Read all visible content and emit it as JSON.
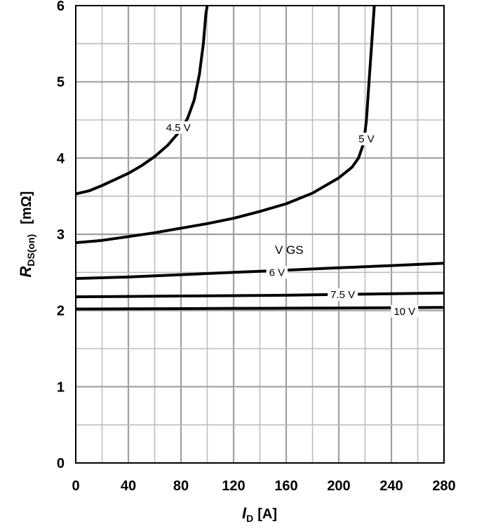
{
  "chart_data": {
    "type": "line",
    "xlabel": {
      "symbol": "I",
      "subscript": "D",
      "unit": "[A]"
    },
    "ylabel": {
      "symbol": "R",
      "subscript": "DS(on)",
      "unit": "[mΩ]"
    },
    "xlim": [
      0,
      280
    ],
    "ylim": [
      0,
      6
    ],
    "x_ticks": [
      "0",
      "40",
      "80",
      "120",
      "160",
      "200",
      "240",
      "280"
    ],
    "y_ticks": [
      "0",
      "1",
      "2",
      "3",
      "4",
      "5",
      "6"
    ],
    "grid": true,
    "group_label": "V GS",
    "series": [
      {
        "name": "4.5 V",
        "label_x": 78,
        "label_y": 4.4,
        "points": [
          [
            0,
            3.53
          ],
          [
            10,
            3.57
          ],
          [
            20,
            3.64
          ],
          [
            30,
            3.72
          ],
          [
            40,
            3.8
          ],
          [
            50,
            3.9
          ],
          [
            60,
            4.02
          ],
          [
            70,
            4.17
          ],
          [
            80,
            4.37
          ],
          [
            85,
            4.52
          ],
          [
            90,
            4.76
          ],
          [
            94,
            5.1
          ],
          [
            97,
            5.5
          ],
          [
            99,
            5.9
          ],
          [
            100,
            6.0
          ]
        ]
      },
      {
        "name": "5 V",
        "label_x": 221,
        "label_y": 4.25,
        "points": [
          [
            0,
            2.89
          ],
          [
            20,
            2.92
          ],
          [
            40,
            2.97
          ],
          [
            60,
            3.02
          ],
          [
            80,
            3.08
          ],
          [
            100,
            3.14
          ],
          [
            120,
            3.21
          ],
          [
            140,
            3.3
          ],
          [
            160,
            3.4
          ],
          [
            180,
            3.54
          ],
          [
            200,
            3.74
          ],
          [
            210,
            3.88
          ],
          [
            215,
            4.0
          ],
          [
            219,
            4.2
          ],
          [
            221,
            4.5
          ],
          [
            223,
            5.0
          ],
          [
            225,
            5.5
          ],
          [
            227,
            6.0
          ]
        ]
      },
      {
        "name": "6 V",
        "label_x": 153,
        "label_y": 2.5,
        "points": [
          [
            0,
            2.42
          ],
          [
            40,
            2.44
          ],
          [
            80,
            2.47
          ],
          [
            120,
            2.5
          ],
          [
            160,
            2.53
          ],
          [
            200,
            2.56
          ],
          [
            240,
            2.59
          ],
          [
            280,
            2.62
          ]
        ]
      },
      {
        "name": "7.5 V",
        "label_x": 203,
        "label_y": 2.21,
        "points": [
          [
            0,
            2.18
          ],
          [
            40,
            2.185
          ],
          [
            80,
            2.19
          ],
          [
            120,
            2.195
          ],
          [
            160,
            2.2
          ],
          [
            200,
            2.21
          ],
          [
            240,
            2.22
          ],
          [
            280,
            2.23
          ]
        ]
      },
      {
        "name": "10 V",
        "label_x": 250,
        "label_y": 1.99,
        "points": [
          [
            0,
            2.02
          ],
          [
            40,
            2.022
          ],
          [
            80,
            2.025
          ],
          [
            120,
            2.028
          ],
          [
            160,
            2.03
          ],
          [
            200,
            2.033
          ],
          [
            240,
            2.036
          ],
          [
            280,
            2.04
          ]
        ]
      }
    ]
  }
}
